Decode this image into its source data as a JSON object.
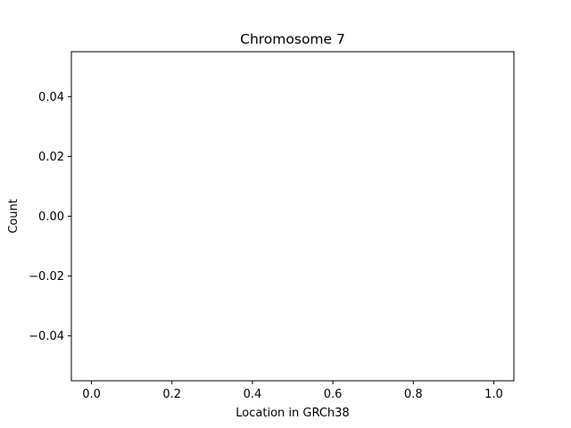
{
  "chart_data": {
    "type": "scatter",
    "title": "Chromosome 7",
    "xlabel": "Location in GRCh38",
    "ylabel": "Count",
    "xlim": [
      -0.05,
      1.05
    ],
    "ylim": [
      -0.055,
      0.055
    ],
    "xticks": [
      0.0,
      0.2,
      0.4,
      0.6,
      0.8,
      1.0
    ],
    "xtick_labels": [
      "0.0",
      "0.2",
      "0.4",
      "0.6",
      "0.8",
      "1.0"
    ],
    "yticks": [
      -0.04,
      -0.02,
      0.0,
      0.02,
      0.04
    ],
    "ytick_labels": [
      "−0.04",
      "−0.02",
      "0.00",
      "0.02",
      "0.04"
    ],
    "series": [],
    "grid": false,
    "legend": "none"
  }
}
